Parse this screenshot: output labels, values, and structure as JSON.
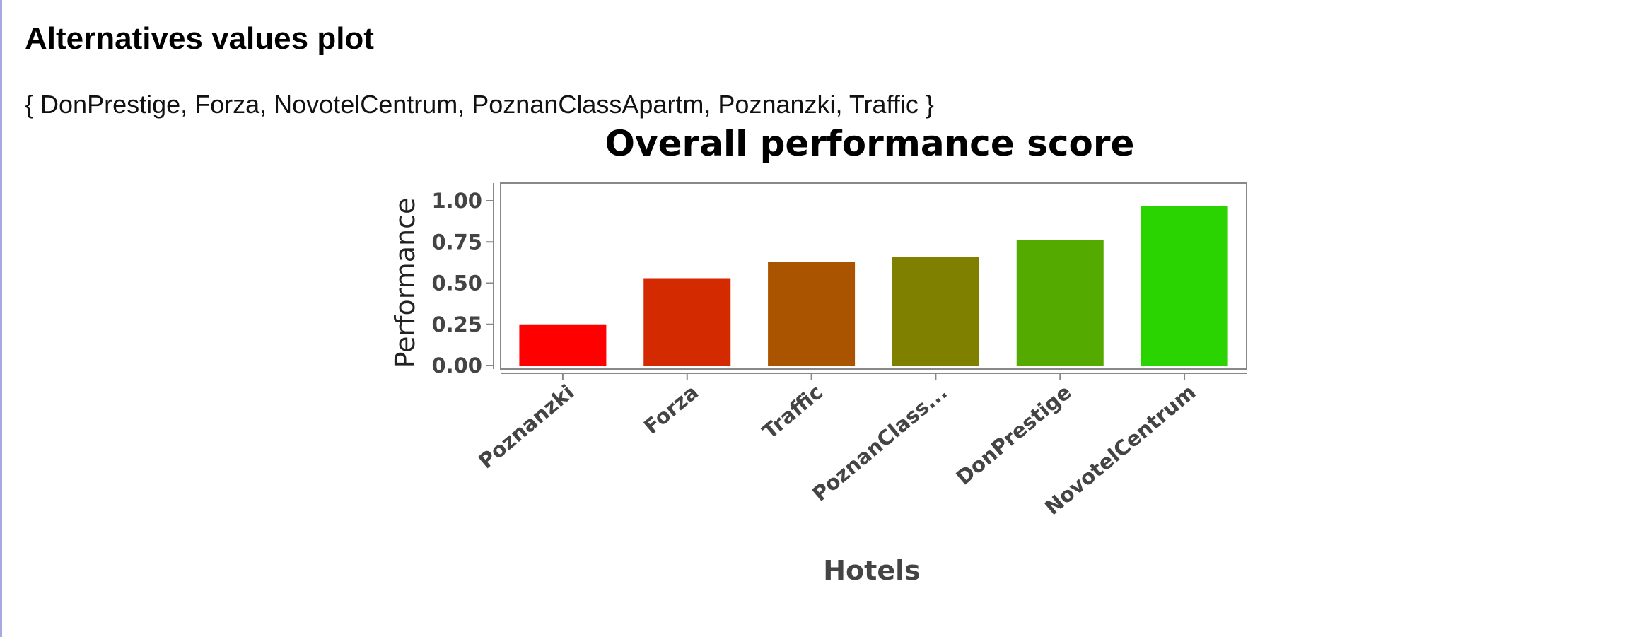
{
  "page": {
    "heading": "Alternatives values plot",
    "alternatives_set": "{ DonPrestige, Forza, NovotelCentrum, PoznanClassApartm, Poznanzki, Traffic }"
  },
  "chart_data": {
    "type": "bar",
    "title": "Overall performance score",
    "xlabel": "Hotels",
    "ylabel": "Performance",
    "categories": [
      "Poznanzki",
      "Forza",
      "Traffic",
      "PoznanClass...",
      "DonPrestige",
      "NovotelCentrum"
    ],
    "values": [
      0.25,
      0.53,
      0.63,
      0.66,
      0.76,
      0.97
    ],
    "colors": [
      "#ff0000",
      "#d42a00",
      "#aa5400",
      "#7f7f00",
      "#55aa00",
      "#2ad400"
    ],
    "ylim": [
      0,
      1.05
    ],
    "yticks": [
      0.0,
      0.25,
      0.5,
      0.75,
      1.0
    ],
    "ytick_labels": [
      "0.00",
      "0.25",
      "0.50",
      "0.75",
      "1.00"
    ],
    "grid": false,
    "legend": "none"
  }
}
